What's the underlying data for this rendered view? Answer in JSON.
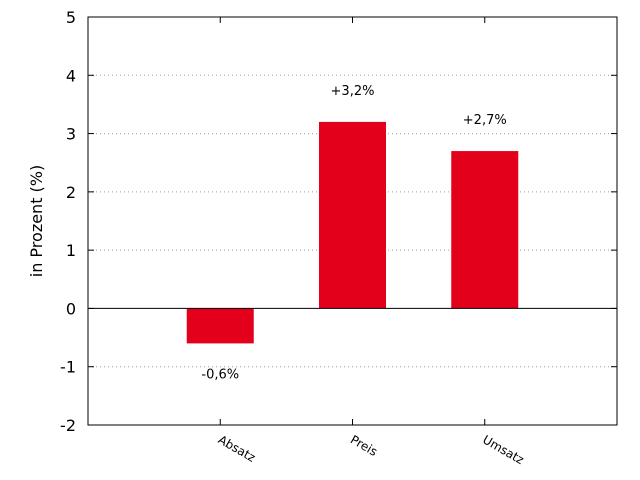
{
  "colors": {
    "bar": "#e2001a",
    "grid": "#a0a0a0",
    "axis": "#000000"
  },
  "chart_data": {
    "type": "bar",
    "categories": [
      "Absatz",
      "Preis",
      "Umsatz"
    ],
    "values": [
      -0.6,
      3.2,
      2.7
    ],
    "data_labels": [
      "-0,6%",
      "+3,2%",
      "+2,7%"
    ],
    "title": "",
    "xlabel": "",
    "ylabel": "in Prozent (%)",
    "ylim": [
      -2,
      5
    ],
    "yticks": [
      -2,
      -1,
      0,
      1,
      2,
      3,
      4,
      5
    ],
    "ytick_labels": [
      "-2",
      "-1",
      "0",
      "1",
      "2",
      "3",
      "4",
      "5"
    ],
    "grid": "horizontal dotted",
    "legend": "none"
  }
}
